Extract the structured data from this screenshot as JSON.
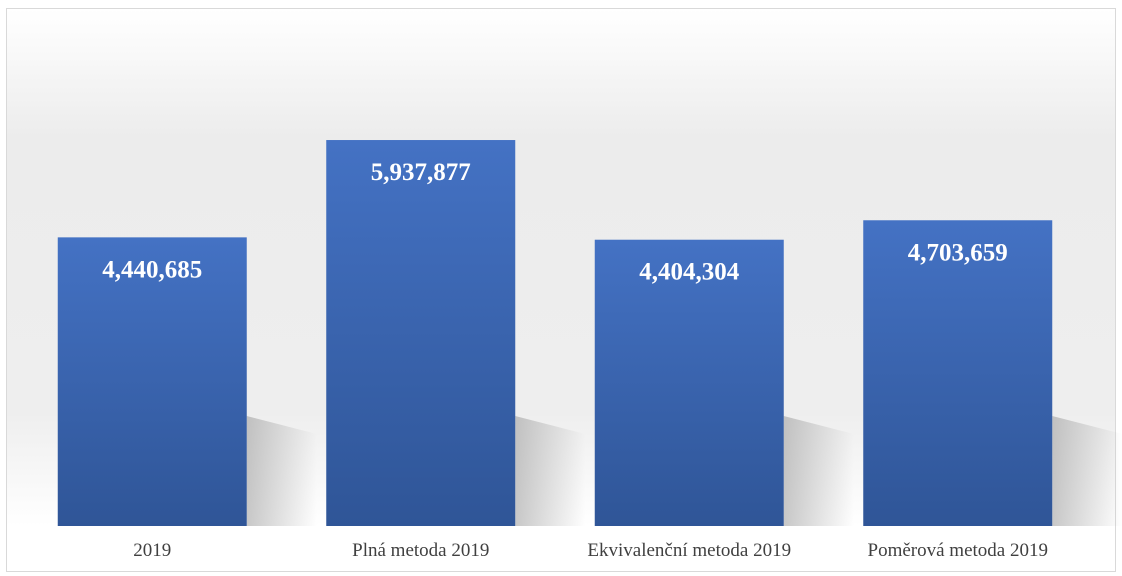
{
  "chart_data": {
    "type": "bar",
    "categories": [
      "2019",
      "Plná metoda 2019",
      "Ekvivalenční metoda 2019",
      "Poměrová metoda 2019"
    ],
    "values": [
      4440685,
      5937877,
      4404304,
      4703659
    ],
    "value_labels": [
      "4,440,685",
      "5,937,877",
      "4,404,304",
      "4,703,659"
    ],
    "title": "",
    "xlabel": "",
    "ylabel": "",
    "ylim": [
      0,
      7200000
    ],
    "grid": false,
    "legend": "none",
    "colors": {
      "bar_top": "#4472c4",
      "bar_bottom": "#2f5597",
      "label_text": "#ffffff",
      "category_text": "#404040"
    }
  }
}
